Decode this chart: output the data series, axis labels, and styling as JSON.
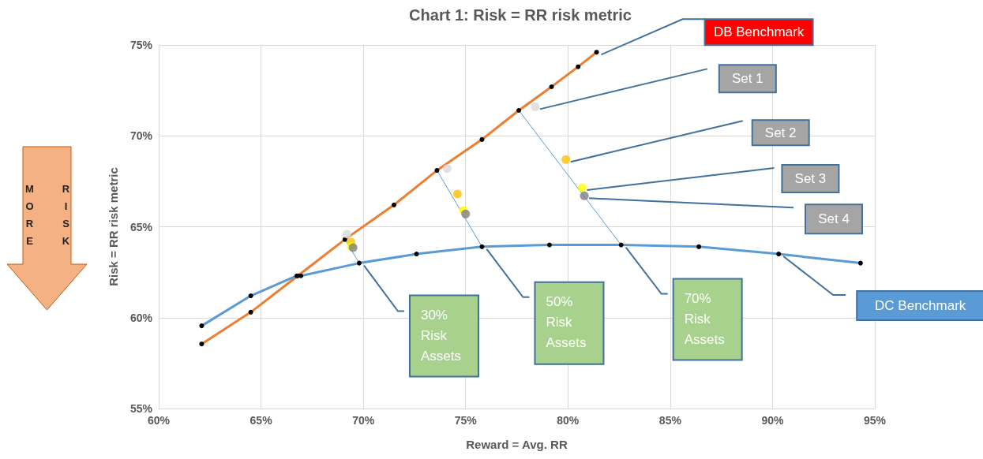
{
  "chart_data": {
    "type": "scatter",
    "title": "Chart 1: Risk = RR risk metric",
    "xlabel": "Reward = Avg. RR",
    "ylabel": "Risk = RR risk metric",
    "xlim": [
      60,
      95
    ],
    "ylim": [
      55,
      75
    ],
    "xticks": [
      {
        "value": 60,
        "label": "60%"
      },
      {
        "value": 65,
        "label": "65%"
      },
      {
        "value": 70,
        "label": "70%"
      },
      {
        "value": 75,
        "label": "75%"
      },
      {
        "value": 80,
        "label": "80%"
      },
      {
        "value": 85,
        "label": "85%"
      },
      {
        "value": 90,
        "label": "90%"
      },
      {
        "value": 95,
        "label": "95%"
      }
    ],
    "yticks": [
      {
        "value": 55,
        "label": "55%"
      },
      {
        "value": 60,
        "label": "60%"
      },
      {
        "value": 65,
        "label": "65%"
      },
      {
        "value": 70,
        "label": "70%"
      },
      {
        "value": 75,
        "label": "75%"
      }
    ],
    "grid": true,
    "legend": false,
    "annotations": [
      "MORE",
      "RISK"
    ],
    "series": [
      {
        "type": "line",
        "name": "DB Benchmark",
        "color": "#ed7d31",
        "marker": "circle",
        "x": [
          62.1,
          64.5,
          66.8,
          69.1,
          71.5,
          73.6,
          75.8,
          77.6,
          79.2,
          80.5,
          81.4
        ],
        "values": [
          58.55,
          60.3,
          62.3,
          64.3,
          66.2,
          68.1,
          69.8,
          71.4,
          72.7,
          73.8,
          74.6
        ]
      },
      {
        "type": "line",
        "name": "DC Benchmark",
        "color": "#5b9bd5",
        "marker": "circle",
        "x": [
          62.1,
          64.5,
          66.75,
          66.95,
          69.8,
          72.6,
          75.8,
          79.1,
          82.6,
          86.4,
          90.3,
          94.3
        ],
        "values": [
          59.55,
          61.2,
          62.3,
          62.3,
          63.0,
          63.5,
          63.9,
          64.0,
          64.0,
          63.9,
          63.5,
          63.0
        ]
      },
      {
        "type": "line",
        "name": "30% Risk Assets",
        "color": "#5b9bd5",
        "marker": "none",
        "x": [
          69.1,
          69.8
        ],
        "values": [
          64.3,
          63.0
        ]
      },
      {
        "type": "line",
        "name": "50% Risk Assets",
        "color": "#5b9bd5",
        "marker": "none",
        "x": [
          73.6,
          75.8
        ],
        "values": [
          68.1,
          63.9
        ]
      },
      {
        "type": "line",
        "name": "70% Risk Assets",
        "color": "#5b9bd5",
        "marker": "none",
        "x": [
          77.6,
          82.6
        ],
        "values": [
          71.4,
          64.0
        ]
      },
      {
        "type": "scatter",
        "name": "Set 1",
        "color": "#d9d9d9",
        "marker": "circle",
        "x": [
          69.2,
          74.1,
          78.4
        ],
        "values": [
          64.6,
          68.2,
          71.6
        ]
      },
      {
        "type": "scatter",
        "name": "Set 2",
        "color": "#ffc000",
        "marker": "circle",
        "x": [
          69.4,
          74.6,
          79.9
        ],
        "values": [
          64.15,
          66.8,
          68.7
        ]
      },
      {
        "type": "scatter",
        "name": "Set 3",
        "color": "#ffff00",
        "marker": "circle",
        "x": [
          69.4,
          74.9,
          80.7
        ],
        "values": [
          63.9,
          65.9,
          67.15
        ]
      },
      {
        "type": "scatter",
        "name": "Set 4",
        "color": "#808080",
        "marker": "circle",
        "x": [
          69.5,
          75.0,
          80.8
        ],
        "values": [
          63.85,
          65.7,
          66.7
        ]
      }
    ]
  }
}
